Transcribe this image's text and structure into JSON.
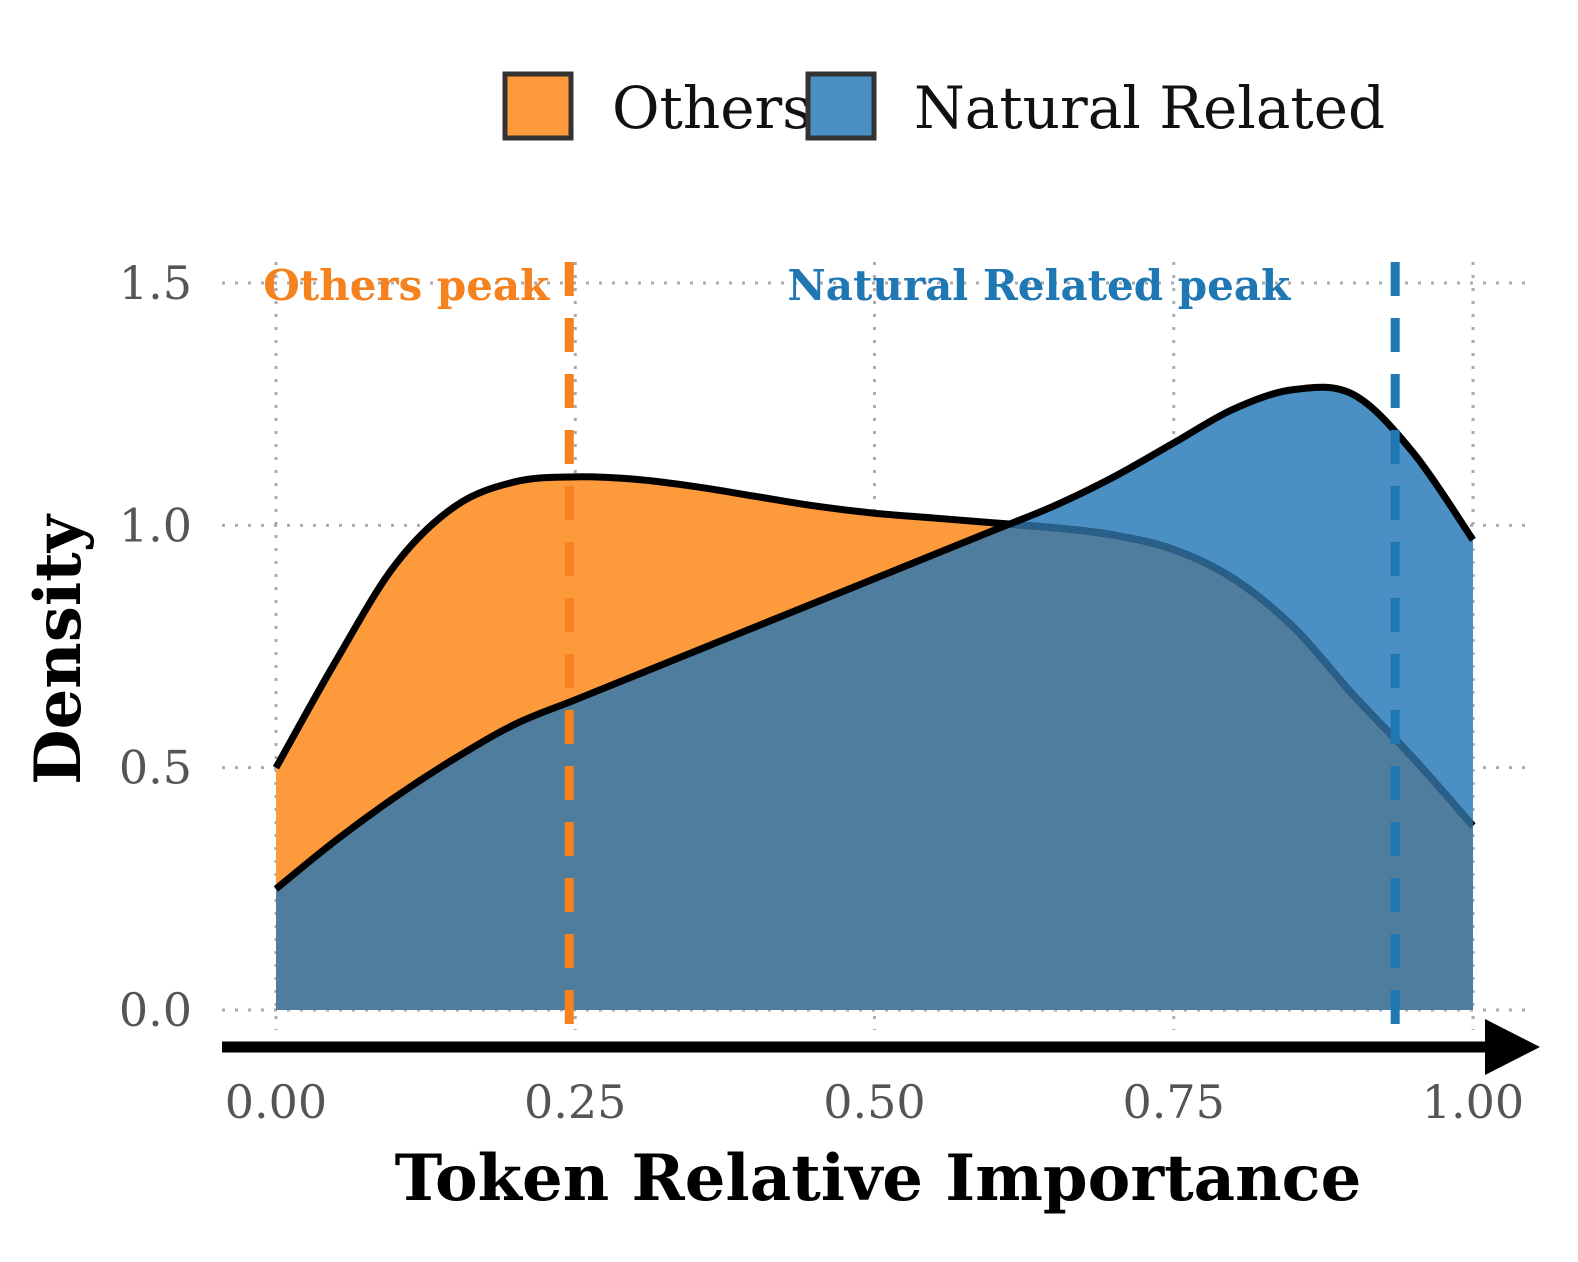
{
  "chart_data": {
    "type": "area",
    "xlabel": "Token Relative Importance",
    "ylabel": "Density",
    "xlim": [
      0,
      1
    ],
    "ylim": [
      0,
      1.5
    ],
    "x_ticks": [
      "0.00",
      "0.25",
      "0.50",
      "0.75",
      "1.00"
    ],
    "y_ticks": [
      "0.0",
      "0.5",
      "1.0",
      "1.5"
    ],
    "grid": "dotted",
    "legend_position": "top",
    "legend": [
      "Others",
      "Natural Related"
    ],
    "series": [
      {
        "name": "Others",
        "color": "#fd9a3b",
        "x": [
          0,
          0.05,
          0.1,
          0.15,
          0.2,
          0.25,
          0.3,
          0.35,
          0.4,
          0.45,
          0.5,
          0.55,
          0.6,
          0.65,
          0.7,
          0.75,
          0.8,
          0.85,
          0.9,
          0.95,
          1.0
        ],
        "y": [
          0.5,
          0.72,
          0.92,
          1.04,
          1.09,
          1.1,
          1.095,
          1.08,
          1.06,
          1.04,
          1.025,
          1.015,
          1.005,
          0.995,
          0.98,
          0.95,
          0.89,
          0.79,
          0.65,
          0.52,
          0.38
        ],
        "peak": 0.245,
        "peak_label": "Others peak"
      },
      {
        "name": "Natural Related",
        "color": "#4a90c4",
        "x": [
          0,
          0.05,
          0.1,
          0.15,
          0.2,
          0.25,
          0.3,
          0.35,
          0.4,
          0.45,
          0.5,
          0.55,
          0.6,
          0.65,
          0.7,
          0.75,
          0.8,
          0.85,
          0.9,
          0.95,
          1.0
        ],
        "y": [
          0.25,
          0.35,
          0.44,
          0.52,
          0.59,
          0.64,
          0.69,
          0.74,
          0.79,
          0.84,
          0.89,
          0.94,
          0.99,
          1.04,
          1.1,
          1.17,
          1.24,
          1.28,
          1.27,
          1.15,
          0.97
        ],
        "peak": 0.935,
        "peak_label": "Natural Related peak"
      }
    ],
    "overlap_color": "#4f7d9e",
    "others_peak_color": "#f5821f",
    "natural_peak_color": "#1f77b4"
  }
}
